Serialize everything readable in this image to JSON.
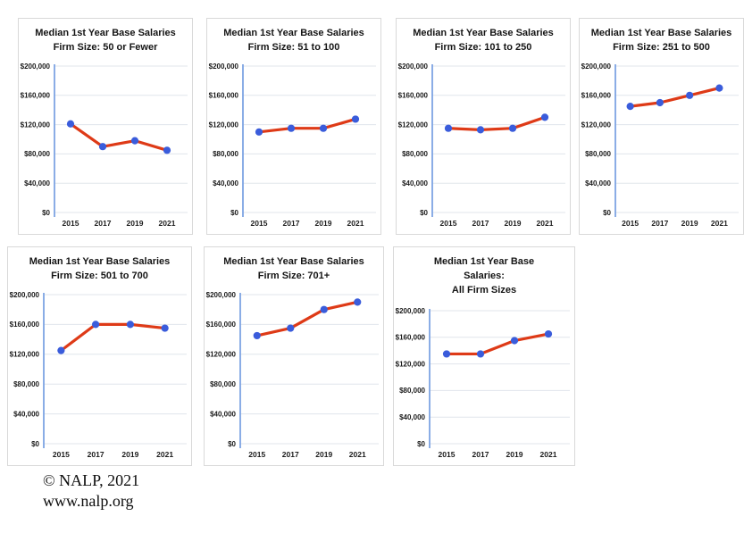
{
  "footer": {
    "copyright": "© NALP, 2021",
    "website": "www.nalp.org"
  },
  "colors": {
    "line": "#de3a17",
    "marker": "#3a5cdb",
    "axis": "#7ea4e3",
    "gridline": "#e0e5eb",
    "card_border": "#d9d9d9",
    "label_text": "#1a1a1a"
  },
  "chart_data": [
    {
      "type": "line",
      "title_lines": [
        "Median 1st Year Base Salaries",
        "Firm Size: 50 or Fewer"
      ],
      "categories": [
        "2015",
        "2017",
        "2019",
        "2021"
      ],
      "values": [
        121000,
        90000,
        98000,
        85000
      ],
      "ylim": [
        0,
        200000
      ],
      "ytick_step": 40000,
      "ytick_labels": [
        "$0",
        "$40,000",
        "$80,000",
        "$120,000",
        "$160,000",
        "$200,000"
      ],
      "grid": true,
      "legend": false
    },
    {
      "type": "line",
      "title_lines": [
        "Median 1st Year Base Salaries",
        "Firm Size: 51 to 100"
      ],
      "categories": [
        "2015",
        "2017",
        "2019",
        "2021"
      ],
      "values": [
        110000,
        115000,
        115000,
        127500
      ],
      "ylim": [
        0,
        200000
      ],
      "ytick_step": 40000,
      "ytick_labels": [
        "$0",
        "$40,000",
        "$80,000",
        "$120,000",
        "$160,000",
        "$200,000"
      ],
      "grid": true,
      "legend": false
    },
    {
      "type": "line",
      "title_lines": [
        "Median 1st Year Base Salaries",
        "Firm Size: 101 to 250"
      ],
      "categories": [
        "2015",
        "2017",
        "2019",
        "2021"
      ],
      "values": [
        115000,
        113000,
        115000,
        130000
      ],
      "ylim": [
        0,
        200000
      ],
      "ytick_step": 40000,
      "ytick_labels": [
        "$0",
        "$40,000",
        "$80,000",
        "$120,000",
        "$160,000",
        "$200,000"
      ],
      "grid": true,
      "legend": false
    },
    {
      "type": "line",
      "title_lines": [
        "Median 1st Year Base Salaries",
        "Firm Size: 251 to 500"
      ],
      "categories": [
        "2015",
        "2017",
        "2019",
        "2021"
      ],
      "values": [
        145000,
        150000,
        160000,
        170000
      ],
      "ylim": [
        0,
        200000
      ],
      "ytick_step": 40000,
      "ytick_labels": [
        "$0",
        "$40,000",
        "$80,000",
        "$120,000",
        "$160,000",
        "$200,000"
      ],
      "grid": true,
      "legend": false
    },
    {
      "type": "line",
      "title_lines": [
        "Median 1st Year Base Salaries",
        "Firm Size: 501 to 700"
      ],
      "categories": [
        "2015",
        "2017",
        "2019",
        "2021"
      ],
      "values": [
        125000,
        160000,
        160000,
        155000
      ],
      "ylim": [
        0,
        200000
      ],
      "ytick_step": 40000,
      "ytick_labels": [
        "$0",
        "$40,000",
        "$80,000",
        "$120,000",
        "$160,000",
        "$200,000"
      ],
      "grid": true,
      "legend": false
    },
    {
      "type": "line",
      "title_lines": [
        "Median 1st Year Base Salaries",
        "Firm Size: 701+"
      ],
      "categories": [
        "2015",
        "2017",
        "2019",
        "2021"
      ],
      "values": [
        145000,
        155000,
        180000,
        190000
      ],
      "ylim": [
        0,
        200000
      ],
      "ytick_step": 40000,
      "ytick_labels": [
        "$0",
        "$40,000",
        "$80,000",
        "$120,000",
        "$160,000",
        "$200,000"
      ],
      "grid": true,
      "legend": false
    },
    {
      "type": "line",
      "title_lines": [
        "Median 1st Year Base",
        "Salaries:",
        "All Firm Sizes"
      ],
      "categories": [
        "2015",
        "2017",
        "2019",
        "2021"
      ],
      "values": [
        135000,
        135000,
        155000,
        165000
      ],
      "ylim": [
        0,
        200000
      ],
      "ytick_step": 40000,
      "ytick_labels": [
        "$0",
        "$40,000",
        "$80,000",
        "$120,000",
        "$160,000",
        "$200,000"
      ],
      "grid": true,
      "legend": false
    }
  ]
}
